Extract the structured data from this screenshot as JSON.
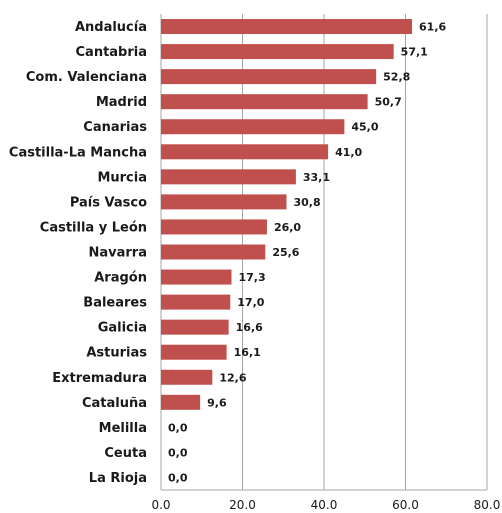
{
  "chart_data": {
    "type": "bar",
    "orientation": "horizontal",
    "categories": [
      "Andalucía",
      "Cantabria",
      "Com. Valenciana",
      "Madrid",
      "Canarias",
      "Castilla-La Mancha",
      "Murcia",
      "País Vasco",
      "Castilla y León",
      "Navarra",
      "Aragón",
      "Baleares",
      "Galicia",
      "Asturias",
      "Extremadura",
      "Cataluña",
      "Melilla",
      "Ceuta",
      "La Rioja"
    ],
    "values": [
      61.6,
      57.1,
      52.8,
      50.7,
      45.0,
      41.0,
      33.1,
      30.8,
      26.0,
      25.6,
      17.3,
      17.0,
      16.6,
      16.1,
      12.6,
      9.6,
      0.0,
      0.0,
      0.0
    ],
    "value_labels": [
      "61,6",
      "57,1",
      "52,8",
      "50,7",
      "45,0",
      "41,0",
      "33,1",
      "30,8",
      "26,0",
      "25,6",
      "17,3",
      "17,0",
      "16,6",
      "16,1",
      "12,6",
      "9,6",
      "0,0",
      "0,0",
      "0,0"
    ],
    "xlim": [
      0,
      80
    ],
    "xticks": [
      0,
      20,
      40,
      60,
      80
    ],
    "xtick_labels": [
      "0.0",
      "20.0",
      "40.0",
      "60.0",
      "80.0"
    ],
    "grid": true,
    "bar_color": "#c0504d",
    "grid_color": "#a6a6a6",
    "title": "",
    "xlabel": "",
    "ylabel": ""
  }
}
